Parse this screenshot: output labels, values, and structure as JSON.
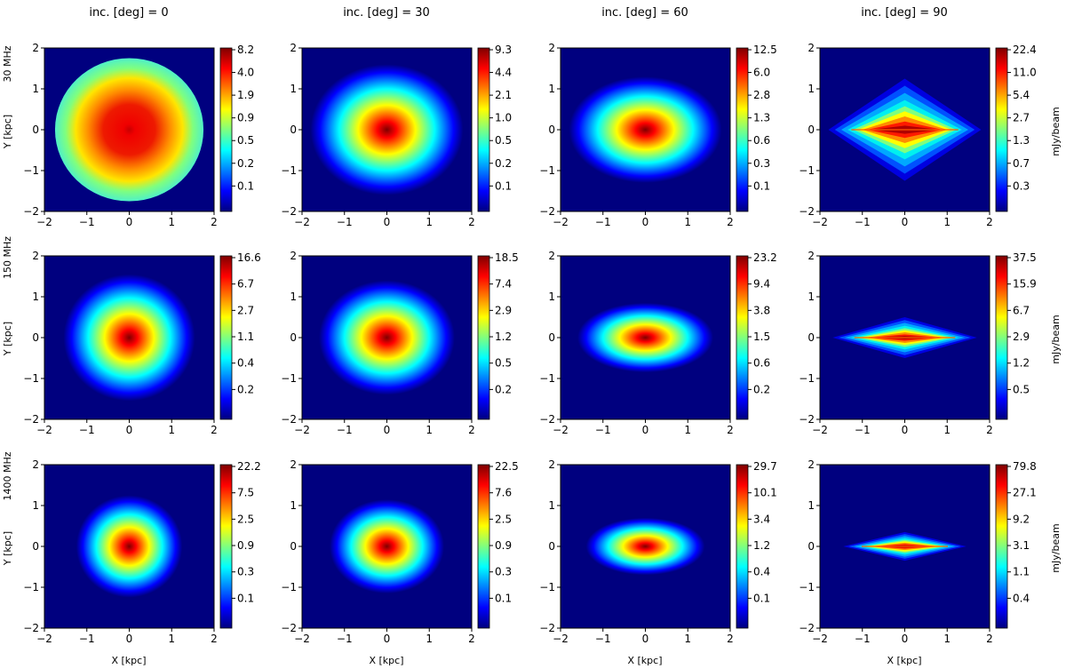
{
  "figure": {
    "column_titles": [
      "inc. [deg] =  0",
      "inc. [deg] =  30",
      "inc. [deg] =  60",
      "inc. [deg] =  90"
    ],
    "row_labels": [
      "30 MHz",
      "150 MHz",
      "1400 MHz"
    ],
    "y_axis_label": "Y [kpc]",
    "x_axis_label": "X [kpc]",
    "colorbar_unit": "mJy/beam",
    "colormap": [
      "#00007f",
      "#0000ff",
      "#007fff",
      "#00ffff",
      "#7fff7f",
      "#ffff00",
      "#ff7f00",
      "#ff0000",
      "#7f0000"
    ]
  },
  "chart_data": [
    {
      "type": "heatmap",
      "row": 0,
      "col": 0,
      "frequency": "30 MHz",
      "inclination_deg": 0,
      "x_ticks": [
        "−2",
        "−1",
        "0",
        "1",
        "2"
      ],
      "y_ticks": [
        "2",
        "1",
        "0",
        "−1",
        "−2"
      ],
      "xlim": [
        -2,
        2
      ],
      "ylim": [
        -2,
        2
      ],
      "colorbar_ticks": [
        "8.2",
        "4.0",
        "1.9",
        "0.9",
        "0.5",
        "0.2",
        "0.1"
      ],
      "colorbar_max": 8.2,
      "colorbar_scale": "log",
      "map": {
        "rx": 1.75,
        "ry": 1.75,
        "shape": "hard-disk"
      }
    },
    {
      "type": "heatmap",
      "row": 0,
      "col": 1,
      "frequency": "30 MHz",
      "inclination_deg": 30,
      "x_ticks": [
        "−2",
        "−1",
        "0",
        "1",
        "2"
      ],
      "y_ticks": [
        "2",
        "1",
        "0",
        "−1",
        "−2"
      ],
      "xlim": [
        -2,
        2
      ],
      "ylim": [
        -2,
        2
      ],
      "colorbar_ticks": [
        "9.3",
        "4.4",
        "2.1",
        "1.0",
        "0.5",
        "0.2",
        "0.1"
      ],
      "colorbar_max": 9.3,
      "colorbar_scale": "log",
      "map": {
        "rx": 1.8,
        "ry": 1.6,
        "shape": "ellipse"
      }
    },
    {
      "type": "heatmap",
      "row": 0,
      "col": 2,
      "frequency": "30 MHz",
      "inclination_deg": 60,
      "x_ticks": [
        "−2",
        "−1",
        "0",
        "1",
        "2"
      ],
      "y_ticks": [
        "2",
        "1",
        "0",
        "−1",
        "−2"
      ],
      "xlim": [
        -2,
        2
      ],
      "ylim": [
        -2,
        2
      ],
      "colorbar_ticks": [
        "12.5",
        "6.0",
        "2.8",
        "1.3",
        "0.6",
        "0.3",
        "0.1"
      ],
      "colorbar_max": 12.5,
      "colorbar_scale": "log",
      "map": {
        "rx": 1.8,
        "ry": 1.3,
        "shape": "ellipse"
      }
    },
    {
      "type": "heatmap",
      "row": 0,
      "col": 3,
      "frequency": "30 MHz",
      "inclination_deg": 90,
      "x_ticks": [
        "−2",
        "−1",
        "0",
        "1",
        "2"
      ],
      "y_ticks": [
        "2",
        "1",
        "0",
        "−1",
        "−2"
      ],
      "xlim": [
        -2,
        2
      ],
      "ylim": [
        -2,
        2
      ],
      "colorbar_ticks": [
        "22.4",
        "11.0",
        "5.4",
        "2.7",
        "1.3",
        "0.7",
        "0.3"
      ],
      "colorbar_max": 22.4,
      "colorbar_scale": "log",
      "map": {
        "rx": 1.8,
        "ry": 1.25,
        "shape": "diamond"
      }
    },
    {
      "type": "heatmap",
      "row": 1,
      "col": 0,
      "frequency": "150 MHz",
      "inclination_deg": 0,
      "x_ticks": [
        "−2",
        "−1",
        "0",
        "1",
        "2"
      ],
      "y_ticks": [
        "2",
        "1",
        "0",
        "−1",
        "−2"
      ],
      "xlim": [
        -2,
        2
      ],
      "ylim": [
        -2,
        2
      ],
      "colorbar_ticks": [
        "16.6",
        "6.7",
        "2.7",
        "1.1",
        "0.4",
        "0.2"
      ],
      "colorbar_max": 16.6,
      "colorbar_scale": "log",
      "map": {
        "rx": 1.55,
        "ry": 1.55,
        "shape": "ellipse"
      }
    },
    {
      "type": "heatmap",
      "row": 1,
      "col": 1,
      "frequency": "150 MHz",
      "inclination_deg": 30,
      "x_ticks": [
        "−2",
        "−1",
        "0",
        "1",
        "2"
      ],
      "y_ticks": [
        "2",
        "1",
        "0",
        "−1",
        "−2"
      ],
      "xlim": [
        -2,
        2
      ],
      "ylim": [
        -2,
        2
      ],
      "colorbar_ticks": [
        "18.5",
        "7.4",
        "2.9",
        "1.2",
        "0.5",
        "0.2"
      ],
      "colorbar_max": 18.5,
      "colorbar_scale": "log",
      "map": {
        "rx": 1.6,
        "ry": 1.4,
        "shape": "ellipse"
      }
    },
    {
      "type": "heatmap",
      "row": 1,
      "col": 2,
      "frequency": "150 MHz",
      "inclination_deg": 60,
      "x_ticks": [
        "−2",
        "−1",
        "0",
        "1",
        "2"
      ],
      "y_ticks": [
        "2",
        "1",
        "0",
        "−1",
        "−2"
      ],
      "xlim": [
        -2,
        2
      ],
      "ylim": [
        -2,
        2
      ],
      "colorbar_ticks": [
        "23.2",
        "9.4",
        "3.8",
        "1.5",
        "0.6",
        "0.2"
      ],
      "colorbar_max": 23.2,
      "colorbar_scale": "log",
      "map": {
        "rx": 1.6,
        "ry": 0.85,
        "shape": "ellipse"
      }
    },
    {
      "type": "heatmap",
      "row": 1,
      "col": 3,
      "frequency": "150 MHz",
      "inclination_deg": 90,
      "x_ticks": [
        "−2",
        "−1",
        "0",
        "1",
        "2"
      ],
      "y_ticks": [
        "2",
        "1",
        "0",
        "−1",
        "−2"
      ],
      "xlim": [
        -2,
        2
      ],
      "ylim": [
        -2,
        2
      ],
      "colorbar_ticks": [
        "37.5",
        "15.9",
        "6.7",
        "2.9",
        "1.2",
        "0.5"
      ],
      "colorbar_max": 37.5,
      "colorbar_scale": "log",
      "map": {
        "rx": 1.7,
        "ry": 0.5,
        "shape": "diamond"
      }
    },
    {
      "type": "heatmap",
      "row": 2,
      "col": 0,
      "frequency": "1400 MHz",
      "inclination_deg": 0,
      "x_ticks": [
        "−2",
        "−1",
        "0",
        "1",
        "2"
      ],
      "y_ticks": [
        "2",
        "1",
        "0",
        "−1",
        "−2"
      ],
      "xlim": [
        -2,
        2
      ],
      "ylim": [
        -2,
        2
      ],
      "colorbar_ticks": [
        "22.2",
        "7.5",
        "2.5",
        "0.9",
        "0.3",
        "0.1"
      ],
      "colorbar_max": 22.2,
      "colorbar_scale": "log",
      "map": {
        "rx": 1.25,
        "ry": 1.25,
        "shape": "ellipse"
      }
    },
    {
      "type": "heatmap",
      "row": 2,
      "col": 1,
      "frequency": "1400 MHz",
      "inclination_deg": 30,
      "x_ticks": [
        "−2",
        "−1",
        "0",
        "1",
        "2"
      ],
      "y_ticks": [
        "2",
        "1",
        "0",
        "−1",
        "−2"
      ],
      "xlim": [
        -2,
        2
      ],
      "ylim": [
        -2,
        2
      ],
      "colorbar_ticks": [
        "22.5",
        "7.6",
        "2.5",
        "0.9",
        "0.3",
        "0.1"
      ],
      "colorbar_max": 22.5,
      "colorbar_scale": "log",
      "map": {
        "rx": 1.35,
        "ry": 1.15,
        "shape": "ellipse"
      }
    },
    {
      "type": "heatmap",
      "row": 2,
      "col": 2,
      "frequency": "1400 MHz",
      "inclination_deg": 60,
      "x_ticks": [
        "−2",
        "−1",
        "0",
        "1",
        "2"
      ],
      "y_ticks": [
        "2",
        "1",
        "0",
        "−1",
        "−2"
      ],
      "xlim": [
        -2,
        2
      ],
      "ylim": [
        -2,
        2
      ],
      "colorbar_ticks": [
        "29.7",
        "10.1",
        "3.4",
        "1.2",
        "0.4",
        "0.1"
      ],
      "colorbar_max": 29.7,
      "colorbar_scale": "log",
      "map": {
        "rx": 1.4,
        "ry": 0.7,
        "shape": "ellipse"
      }
    },
    {
      "type": "heatmap",
      "row": 2,
      "col": 3,
      "frequency": "1400 MHz",
      "inclination_deg": 90,
      "x_ticks": [
        "−2",
        "−1",
        "0",
        "1",
        "2"
      ],
      "y_ticks": [
        "2",
        "1",
        "0",
        "−1",
        "−2"
      ],
      "xlim": [
        -2,
        2
      ],
      "ylim": [
        -2,
        2
      ],
      "colorbar_ticks": [
        "79.8",
        "27.1",
        "9.2",
        "3.1",
        "1.1",
        "0.4"
      ],
      "colorbar_max": 79.8,
      "colorbar_scale": "log",
      "map": {
        "rx": 1.45,
        "ry": 0.35,
        "shape": "diamond"
      }
    }
  ]
}
